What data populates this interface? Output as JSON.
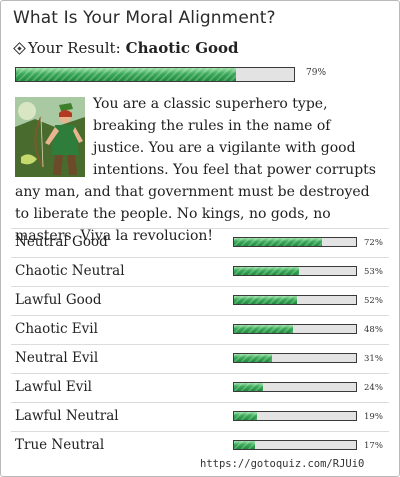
{
  "quiz": {
    "title": "What Is Your Moral Alignment?",
    "result_prefix": "Your Result:",
    "result_name": "Chaotic Good",
    "result_percent": 79,
    "result_percent_label": "79%",
    "description": "You are a classic superhero type, breaking the rules in the name of justice. You are a vigilante with good intentions. You feel that power corrupts any man, and that government must be destroyed to liberate the people. No kings, no gods, no masters. Viva la revolucion!"
  },
  "results": [
    {
      "label": "Neutral Good",
      "percent": 72,
      "percent_label": "72%"
    },
    {
      "label": "Chaotic Neutral",
      "percent": 53,
      "percent_label": "53%"
    },
    {
      "label": "Lawful Good",
      "percent": 52,
      "percent_label": "52%"
    },
    {
      "label": "Chaotic Evil",
      "percent": 48,
      "percent_label": "48%"
    },
    {
      "label": "Neutral Evil",
      "percent": 31,
      "percent_label": "31%"
    },
    {
      "label": "Lawful Evil",
      "percent": 24,
      "percent_label": "24%"
    },
    {
      "label": "Lawful Neutral",
      "percent": 19,
      "percent_label": "19%"
    },
    {
      "label": "True Neutral",
      "percent": 17,
      "percent_label": "17%"
    }
  ],
  "footer": {
    "url": "https://gotoquiz.com/RJUi0"
  },
  "colors": {
    "bar_fill": "#2f9e4e",
    "bar_track": "#e3e3e3"
  }
}
